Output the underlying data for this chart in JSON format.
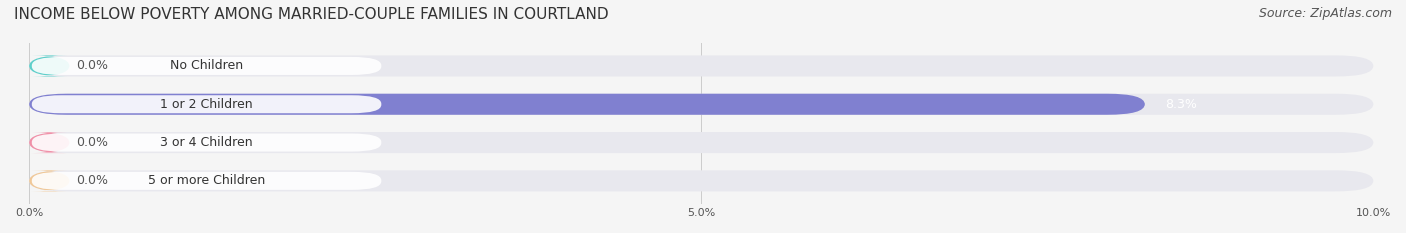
{
  "title": "INCOME BELOW POVERTY AMONG MARRIED-COUPLE FAMILIES IN COURTLAND",
  "source": "Source: ZipAtlas.com",
  "categories": [
    "No Children",
    "1 or 2 Children",
    "3 or 4 Children",
    "5 or more Children"
  ],
  "values": [
    0.0,
    8.3,
    0.0,
    0.0
  ],
  "bar_colors": [
    "#5ecfca",
    "#8080d0",
    "#f090a8",
    "#f0c898"
  ],
  "label_colors": [
    "#5ecfca",
    "#8080d0",
    "#f090a8",
    "#f0c898"
  ],
  "xlim": [
    0,
    10.0
  ],
  "xticks": [
    0.0,
    5.0,
    10.0
  ],
  "xticklabels": [
    "0.0%",
    "5.0%",
    "10.0%"
  ],
  "background_color": "#f5f5f5",
  "bar_bg_color": "#e8e8e8",
  "title_fontsize": 11,
  "source_fontsize": 9,
  "label_fontsize": 9,
  "value_fontsize": 9
}
